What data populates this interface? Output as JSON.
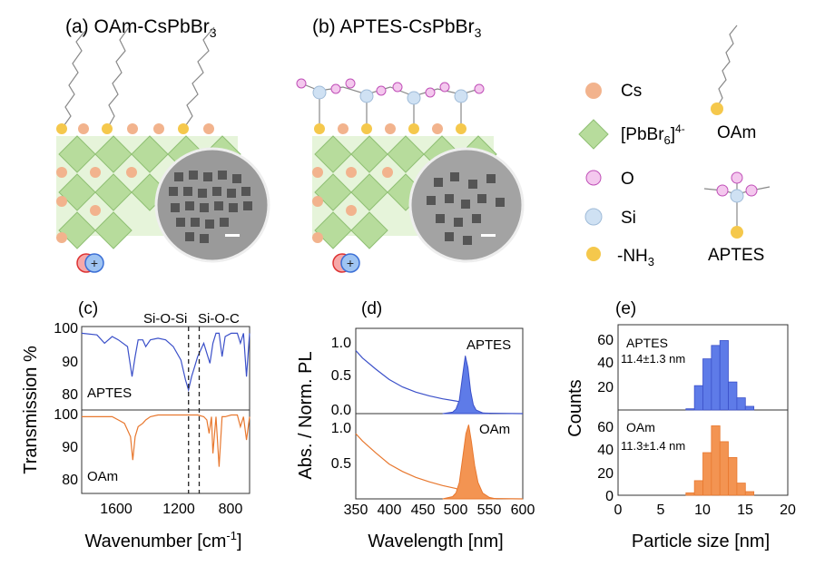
{
  "panel_a": {
    "label": "(a)",
    "title_main": "OAm-CsPbBr",
    "title_sub": "3"
  },
  "panel_b": {
    "label": "(b)",
    "title_main": "APTES-CsPbBr",
    "title_sub": "3"
  },
  "legend": {
    "cs": "Cs",
    "pbbr6_main": "[PbBr",
    "pbbr6_sub": "6",
    "pbbr6_end": "]",
    "pbbr6_sup": "4-",
    "o": "O",
    "si": "Si",
    "nh3_main": "-NH",
    "nh3_sub": "3",
    "oam": "OAm",
    "aptes": "APTES"
  },
  "colors": {
    "cs": "#f2b38d",
    "octahedron": "#b7dc9c",
    "o": "#f4c8ee",
    "si": "#cfe1f3",
    "nh3": "#f5c84c",
    "aptes_line": "#3b50c9",
    "oam_line": "#e8782f",
    "aptes_fill": "#5e7be8",
    "oam_fill": "#f39452"
  },
  "panel_c": {
    "label": "(c)",
    "ylabel": "Transmission %",
    "xlabel_main": "Wavenumber [cm",
    "xlabel_sup": "-1",
    "xlabel_end": "]",
    "annot_1": "Si-O-Si",
    "annot_2": "Si-O-C",
    "series_top": "APTES",
    "series_bottom": "OAm",
    "xticks": [
      "1600",
      "1200",
      "800"
    ],
    "yticks": [
      "100",
      "90",
      "80"
    ]
  },
  "panel_d": {
    "label": "(d)",
    "ylabel": "Abs. / Norm. PL",
    "xlabel": "Wavelength [nm]",
    "series_top": "APTES",
    "series_bottom": "OAm",
    "xticks": [
      "350",
      "400",
      "450",
      "500",
      "550",
      "600"
    ],
    "yticks_top": [
      "1.0",
      "0.5",
      "0.0"
    ],
    "yticks_bottom": [
      "1.0",
      "0.5"
    ]
  },
  "panel_e": {
    "label": "(e)",
    "ylabel": "Counts",
    "xlabel": "Particle size [nm]",
    "series_top": "APTES",
    "stat_top": "11.4±1.3 nm",
    "series_bottom": "OAm",
    "stat_bottom": "11.3±1.4 nm",
    "xticks": [
      "0",
      "5",
      "10",
      "15",
      "20"
    ],
    "yticks": [
      "60",
      "40",
      "20",
      "0"
    ]
  },
  "chart_data": [
    {
      "type": "line",
      "title": "",
      "xlabel": "Wavenumber [cm-1]",
      "ylabel": "Transmission %",
      "xlim": [
        1800,
        700
      ],
      "ylim": [
        76,
        101
      ],
      "grid": false,
      "series": [
        {
          "name": "APTES",
          "x": [
            1800,
            1700,
            1650,
            1600,
            1560,
            1500,
            1470,
            1450,
            1430,
            1400,
            1380,
            1350,
            1300,
            1250,
            1200,
            1150,
            1120,
            1100,
            1080,
            1060,
            1040,
            1000,
            960,
            940,
            920,
            900,
            880,
            860,
            820,
            780,
            760,
            740,
            720,
            700
          ],
          "y": [
            99,
            98.5,
            96,
            98,
            97,
            95,
            86,
            92,
            97,
            97,
            95,
            97,
            97.5,
            97,
            95,
            91,
            85,
            82,
            86,
            89,
            92,
            96,
            90,
            96,
            99,
            99,
            92,
            98,
            99,
            99,
            96,
            99,
            86,
            99
          ]
        },
        {
          "name": "OAm",
          "x": [
            1800,
            1700,
            1650,
            1600,
            1560,
            1520,
            1500,
            1480,
            1465,
            1450,
            1430,
            1400,
            1380,
            1350,
            1300,
            1200,
            1100,
            1040,
            1000,
            980,
            965,
            950,
            940,
            920,
            900,
            880,
            860,
            820,
            780,
            760,
            740,
            720,
            700
          ],
          "y": [
            99,
            99,
            99,
            99,
            98,
            97,
            95,
            93,
            86,
            93,
            96,
            97,
            98,
            99,
            99.5,
            99.5,
            99.5,
            99.5,
            99,
            98,
            94,
            99,
            88,
            99,
            84,
            99,
            99,
            99.5,
            99.5,
            96,
            99,
            92,
            99
          ]
        }
      ],
      "annotations": [
        {
          "text": "Si-O-Si",
          "x": 1100
        },
        {
          "text": "Si-O-C",
          "x": 1030
        }
      ]
    },
    {
      "type": "line",
      "title": "",
      "xlabel": "Wavelength [nm]",
      "ylabel": "Abs. / Norm. PL",
      "xlim": [
        350,
        600
      ],
      "ylim": [
        0,
        1.15
      ],
      "grid": false,
      "series": [
        {
          "name": "APTES absorbance",
          "x": [
            350,
            360,
            380,
            400,
            420,
            440,
            460,
            480,
            500,
            505,
            510,
            515,
            520,
            530,
            550,
            600
          ],
          "y": [
            0.85,
            0.75,
            0.6,
            0.46,
            0.36,
            0.29,
            0.24,
            0.2,
            0.17,
            0.16,
            0.13,
            0.07,
            0.03,
            0.01,
            0.005,
            0
          ]
        },
        {
          "name": "APTES PL",
          "x": [
            480,
            495,
            500,
            505,
            510,
            514,
            518,
            522,
            526,
            530,
            540,
            550
          ],
          "y": [
            0,
            0.02,
            0.06,
            0.18,
            0.52,
            0.78,
            0.62,
            0.3,
            0.12,
            0.05,
            0.01,
            0
          ]
        },
        {
          "name": "OAm absorbance",
          "x": [
            350,
            360,
            380,
            400,
            420,
            440,
            460,
            480,
            500,
            505,
            510,
            515,
            520,
            530,
            550,
            600
          ],
          "y": [
            0.88,
            0.78,
            0.62,
            0.47,
            0.37,
            0.29,
            0.23,
            0.18,
            0.14,
            0.12,
            0.1,
            0.05,
            0.02,
            0.01,
            0.005,
            0
          ]
        },
        {
          "name": "OAm PL",
          "x": [
            480,
            495,
            500,
            505,
            510,
            515,
            519,
            523,
            528,
            533,
            540,
            550,
            560
          ],
          "y": [
            0,
            0.03,
            0.08,
            0.22,
            0.55,
            0.88,
            1.0,
            0.78,
            0.45,
            0.22,
            0.08,
            0.02,
            0
          ]
        }
      ]
    },
    {
      "type": "bar",
      "title": "",
      "xlabel": "Particle size [nm]",
      "ylabel": "Counts",
      "xlim": [
        0,
        20
      ],
      "ylim": [
        0,
        70
      ],
      "grid": false,
      "series": [
        {
          "name": "APTES",
          "label": "11.4±1.3 nm",
          "bin_starts": [
            7,
            8,
            9,
            10,
            11,
            12,
            13,
            14,
            15
          ],
          "values": [
            0,
            1,
            20,
            42,
            53,
            57,
            23,
            10,
            3
          ]
        },
        {
          "name": "OAm",
          "label": "11.3±1.4 nm",
          "bin_starts": [
            7,
            8,
            9,
            10,
            11,
            12,
            13,
            14,
            15
          ],
          "values": [
            0,
            2,
            12,
            35,
            57,
            44,
            31,
            10,
            3
          ]
        }
      ]
    }
  ]
}
